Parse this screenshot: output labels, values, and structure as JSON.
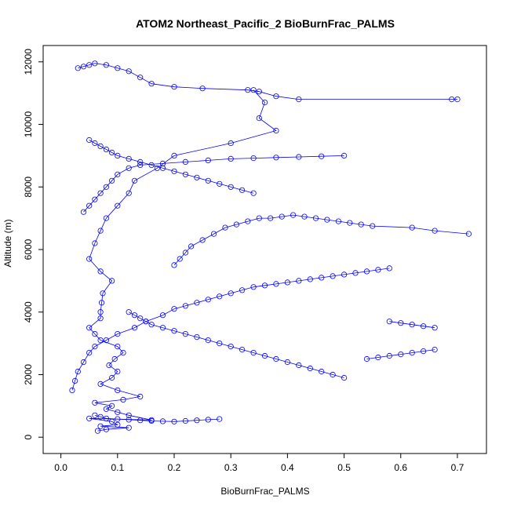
{
  "chart_data": {
    "type": "scatter",
    "title": "ATOM2 Northeast_Pacific_2 BioBurnFrac_PALMS",
    "xlabel": "BioBurnFrac_PALMS",
    "ylabel": "Altitude (m)",
    "xlim": [
      0,
      0.72
    ],
    "ylim": [
      0,
      12000
    ],
    "x_ticks": [
      0,
      0.1,
      0.2,
      0.3,
      0.4,
      0.5,
      0.6,
      0.7
    ],
    "x_tick_labels": [
      "0.0",
      "0.1",
      "0.2",
      "0.3",
      "0.4",
      "0.5",
      "0.6",
      "0.7"
    ],
    "y_ticks": [
      0,
      2000,
      4000,
      6000,
      8000,
      10000,
      12000
    ],
    "y_tick_labels": [
      "0",
      "2000",
      "4000",
      "6000",
      "8000",
      "10000",
      "12000"
    ],
    "grid": false,
    "legend": "none",
    "connected": true,
    "color": "#0000ff",
    "series": [
      {
        "x": [
          0.065,
          0.08,
          0.12,
          0.07,
          0.1,
          0.09,
          0.05,
          0.16,
          0.12,
          0.1,
          0.08,
          0.09,
          0.06,
          0.11,
          0.14,
          0.1,
          0.07,
          0.09,
          0.1,
          0.085,
          0.095,
          0.11,
          0.1,
          0.07,
          0.06,
          0.05,
          0.07,
          0.07,
          0.072,
          0.074,
          0.09,
          0.07,
          0.05,
          0.06,
          0.07,
          0.08,
          0.1,
          0.12,
          0.13,
          0.17,
          0.2,
          0.3,
          0.38,
          0.35,
          0.36,
          0.34
        ],
        "y": [
          200,
          250,
          300,
          350,
          400,
          500,
          600,
          550,
          700,
          800,
          900,
          1000,
          1100,
          1200,
          1300,
          1500,
          1700,
          1900,
          2100,
          2300,
          2500,
          2700,
          2900,
          3100,
          3300,
          3500,
          3800,
          4000,
          4300,
          4600,
          5000,
          5300,
          5700,
          6200,
          6600,
          7000,
          7400,
          7800,
          8200,
          8600,
          9000,
          9400,
          9800,
          10200,
          10700,
          11100
        ]
      },
      {
        "x": [
          0.02,
          0.025,
          0.03,
          0.04,
          0.05,
          0.06,
          0.08,
          0.1,
          0.13,
          0.15,
          0.18,
          0.2,
          0.22,
          0.24,
          0.26,
          0.28,
          0.3,
          0.32,
          0.34,
          0.36,
          0.38,
          0.4,
          0.42,
          0.44,
          0.46,
          0.48,
          0.5,
          0.52,
          0.54,
          0.56,
          0.58
        ],
        "y": [
          1500,
          1800,
          2100,
          2400,
          2700,
          2900,
          3100,
          3300,
          3500,
          3700,
          3900,
          4100,
          4200,
          4300,
          4400,
          4500,
          4600,
          4700,
          4800,
          4850,
          4900,
          4950,
          5000,
          5050,
          5100,
          5150,
          5200,
          5250,
          5300,
          5350,
          5400
        ]
      },
      {
        "x": [
          0.2,
          0.21,
          0.22,
          0.23,
          0.25,
          0.27,
          0.29,
          0.31,
          0.33,
          0.35,
          0.37,
          0.39,
          0.41,
          0.43,
          0.45,
          0.47,
          0.49,
          0.51,
          0.53,
          0.55,
          0.62,
          0.66,
          0.72
        ],
        "y": [
          5500,
          5700,
          5900,
          6100,
          6300,
          6500,
          6700,
          6800,
          6900,
          7000,
          7000,
          7050,
          7100,
          7050,
          7000,
          6950,
          6900,
          6850,
          6800,
          6750,
          6700,
          6600,
          6500
        ]
      },
      {
        "x": [
          0.04,
          0.05,
          0.06,
          0.07,
          0.08,
          0.09,
          0.1,
          0.12,
          0.14,
          0.18,
          0.22,
          0.26,
          0.3,
          0.34,
          0.38,
          0.42,
          0.46,
          0.5
        ],
        "y": [
          7200,
          7400,
          7600,
          7800,
          8000,
          8200,
          8400,
          8600,
          8700,
          8750,
          8800,
          8850,
          8900,
          8920,
          8940,
          8960,
          8980,
          9000
        ]
      },
      {
        "x": [
          0.03,
          0.04,
          0.05,
          0.06,
          0.08,
          0.1,
          0.12,
          0.14,
          0.16,
          0.2,
          0.25,
          0.33,
          0.35,
          0.38,
          0.42,
          0.69,
          0.7
        ],
        "y": [
          11800,
          11850,
          11900,
          11950,
          11900,
          11800,
          11700,
          11500,
          11300,
          11200,
          11150,
          11100,
          11050,
          10900,
          10800,
          10800,
          10800
        ]
      },
      {
        "x": [
          0.05,
          0.06,
          0.07,
          0.08,
          0.09,
          0.1,
          0.12,
          0.14,
          0.16,
          0.18,
          0.2,
          0.22,
          0.24,
          0.26,
          0.28,
          0.3,
          0.32,
          0.34
        ],
        "y": [
          9500,
          9400,
          9300,
          9200,
          9100,
          9000,
          8900,
          8800,
          8700,
          8600,
          8500,
          8400,
          8300,
          8200,
          8100,
          8000,
          7900,
          7800
        ]
      },
      {
        "x": [
          0.12,
          0.13,
          0.14,
          0.15,
          0.16,
          0.18,
          0.2,
          0.22,
          0.24,
          0.26,
          0.28,
          0.3,
          0.32,
          0.34,
          0.36,
          0.38,
          0.4,
          0.42,
          0.44,
          0.46,
          0.48,
          0.5
        ],
        "y": [
          4000,
          3900,
          3800,
          3700,
          3600,
          3500,
          3400,
          3300,
          3200,
          3100,
          3000,
          2900,
          2800,
          2700,
          2600,
          2500,
          2400,
          2300,
          2200,
          2100,
          2000,
          1900
        ]
      },
      {
        "x": [
          0.06,
          0.07,
          0.08,
          0.1,
          0.12,
          0.14,
          0.16,
          0.18,
          0.2,
          0.22,
          0.24,
          0.26,
          0.28
        ],
        "y": [
          700,
          650,
          600,
          580,
          560,
          540,
          520,
          510,
          500,
          520,
          540,
          560,
          580
        ]
      },
      {
        "x": [
          0.58,
          0.6,
          0.62,
          0.64,
          0.66
        ],
        "y": [
          3700,
          3650,
          3600,
          3550,
          3500
        ]
      },
      {
        "x": [
          0.54,
          0.56,
          0.58,
          0.6,
          0.62,
          0.64,
          0.66
        ],
        "y": [
          2500,
          2550,
          2600,
          2650,
          2700,
          2750,
          2800
        ]
      }
    ]
  }
}
